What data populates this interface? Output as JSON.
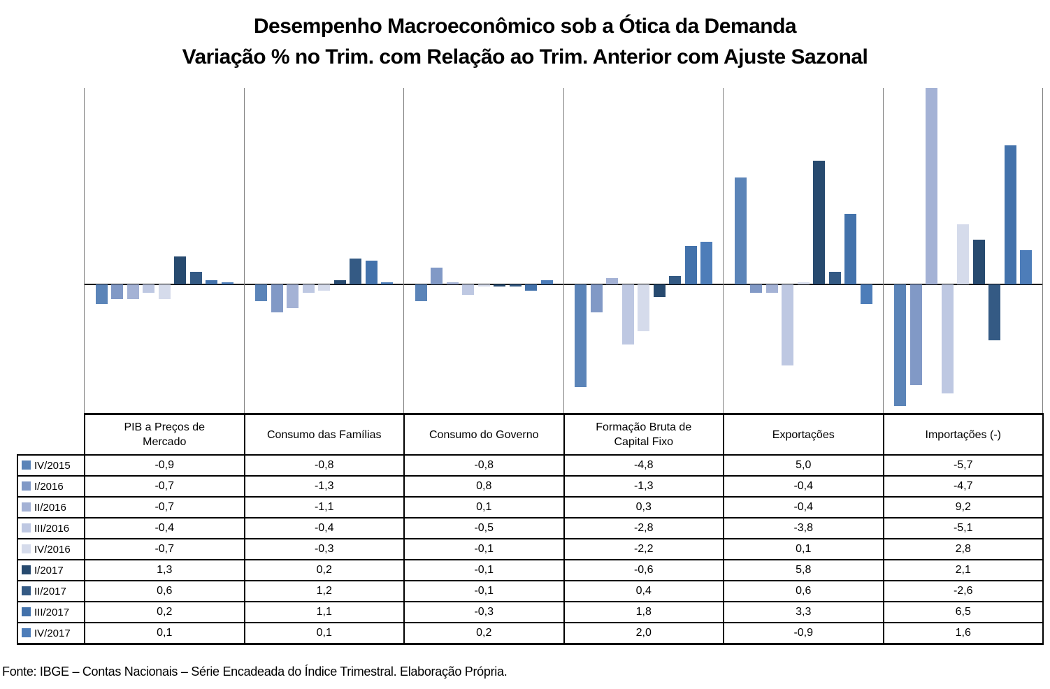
{
  "title": {
    "line1": "Desempenho Macroeconômico sob a Ótica da Demanda",
    "line2": "Variação % no Trim. com Relação ao Trim. Anterior com Ajuste Sazonal"
  },
  "footer": {
    "source": "Fonte: IBGE – Contas Nacionais – Série Encadeada do Índice Trimestral. Elaboração Própria."
  },
  "chart_data": {
    "type": "bar",
    "title": "Desempenho Macroeconômico sob a Ótica da Demanda",
    "subtitle": "Variação % no Trim. com Relação ao Trim. Anterior com Ajuste Sazonal",
    "categories": [
      "PIB a Preços de\nMercado",
      "Consumo das Famílias",
      "Consumo do Governo",
      "Formação Bruta de\nCapital Fixo",
      "Exportações",
      "Importações (-)"
    ],
    "series": [
      {
        "name": "IV/2015",
        "color": "#5b84b8",
        "values": [
          -0.9,
          -0.8,
          -0.8,
          -4.8,
          5.0,
          -5.7
        ]
      },
      {
        "name": "I/2016",
        "color": "#8199c6",
        "values": [
          -0.7,
          -1.3,
          0.8,
          -1.3,
          -0.4,
          -4.7
        ]
      },
      {
        "name": "II/2016",
        "color": "#a4b2d5",
        "values": [
          -0.7,
          -1.1,
          0.1,
          0.3,
          -0.4,
          9.2
        ]
      },
      {
        "name": "III/2016",
        "color": "#bec8e2",
        "values": [
          -0.4,
          -0.4,
          -0.5,
          -2.8,
          -3.8,
          -5.1
        ]
      },
      {
        "name": "IV/2016",
        "color": "#d5dbeb",
        "values": [
          -0.7,
          -0.3,
          -0.1,
          -2.2,
          0.1,
          2.8
        ]
      },
      {
        "name": "I/2017",
        "color": "#274a6f",
        "values": [
          1.3,
          0.2,
          -0.1,
          -0.6,
          5.8,
          2.1
        ]
      },
      {
        "name": "II/2017",
        "color": "#345a84",
        "values": [
          0.6,
          1.2,
          -0.1,
          0.4,
          0.6,
          -2.6
        ]
      },
      {
        "name": "III/2017",
        "color": "#4372ab",
        "values": [
          0.2,
          1.1,
          -0.3,
          1.8,
          3.3,
          6.5
        ]
      },
      {
        "name": "IV/2017",
        "color": "#4d7db9",
        "values": [
          0.1,
          0.1,
          0.2,
          2.0,
          -0.9,
          1.6
        ]
      }
    ],
    "ylim": [
      -6.1,
      9.2
    ],
    "ylabel": "",
    "xlabel": "",
    "grid": "vertical category separators only, no value axis labels",
    "legend_position": "table row headers below chart",
    "value_format": "comma decimal, 1 decimal place"
  }
}
